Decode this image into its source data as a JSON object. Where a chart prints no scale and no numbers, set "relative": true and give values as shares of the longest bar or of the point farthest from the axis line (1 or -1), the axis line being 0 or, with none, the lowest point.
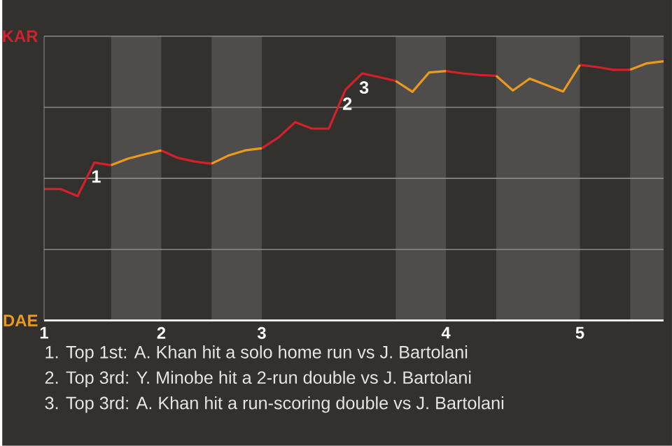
{
  "chart_data": {
    "type": "line",
    "marker": "none",
    "line_style": "solid",
    "grid": "y",
    "relative": true,
    "legend": "left",
    "categories": [
      "1",
      null,
      null,
      null,
      null,
      null,
      null,
      "2",
      null,
      null,
      null,
      null,
      null,
      "3",
      null,
      null,
      null,
      null,
      null,
      null,
      null,
      null,
      null,
      null,
      "4",
      null,
      null,
      null,
      null,
      null,
      null,
      null,
      "5",
      null,
      null,
      null,
      null,
      null
    ],
    "series": [
      {
        "name": "KAR",
        "color": "#d3202b",
        "values": [
          0.507,
          0.507,
          0.48,
          0.609,
          0.599,
          null,
          null,
          0.656,
          0.627,
          0.613,
          0.605,
          null,
          null,
          0.664,
          0.706,
          0.765,
          0.74,
          0.74,
          0.89,
          0.953,
          0.939,
          0.924,
          null,
          null,
          0.962,
          0.953,
          0.947,
          0.944,
          null,
          null,
          null,
          null,
          0.986,
          0.978,
          0.967,
          0.967,
          null,
          null
        ]
      },
      {
        "name": "DAE",
        "color": "#ec9a1e",
        "values": [
          null,
          null,
          null,
          null,
          0.599,
          0.624,
          0.641,
          0.656,
          null,
          null,
          0.605,
          0.636,
          0.656,
          0.664,
          null,
          null,
          null,
          null,
          null,
          null,
          null,
          0.924,
          0.882,
          0.957,
          0.962,
          null,
          null,
          0.944,
          0.887,
          0.933,
          0.908,
          0.883,
          0.986,
          null,
          null,
          0.967,
          0.992,
          1
        ]
      }
    ],
    "annotations": [
      {
        "text": "1",
        "y": 0.609
      },
      {
        "text": "2",
        "y": 0.89
      },
      {
        "text": "3",
        "y": 0.953
      },
      "1. Top 1st: A. Khan hit a solo home run vs J. Bartolani",
      "2. Top 3rd: Y. Minobe hit a 2-run double vs J. Bartolani",
      "3. Top 3rd: A. Khan hit a run-scoring double vs J. Bartolani"
    ]
  }
}
